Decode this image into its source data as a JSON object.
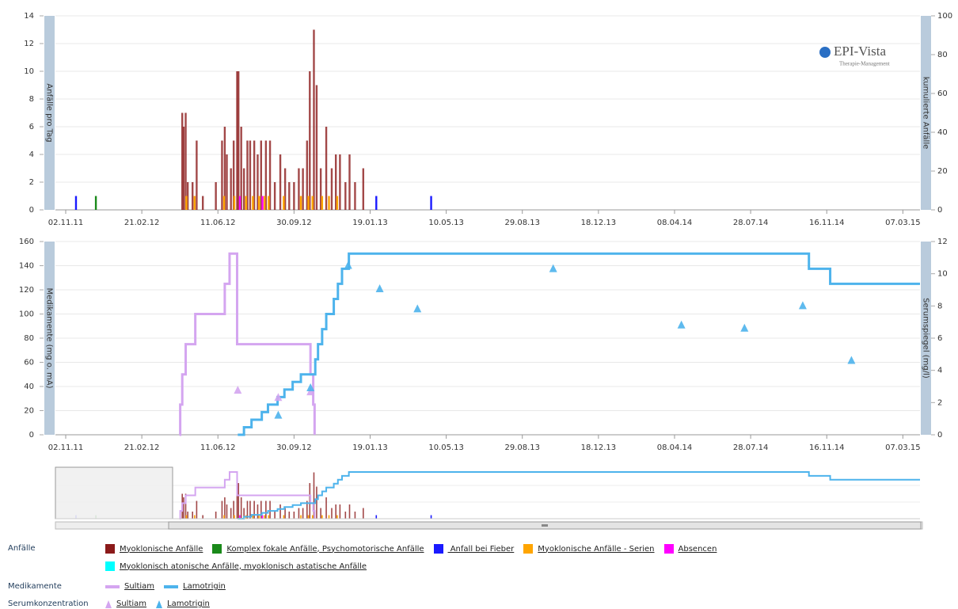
{
  "logo": {
    "title": "EPI-Vista",
    "subtitle": "Therapie-Management"
  },
  "chart_data": [
    {
      "type": "bar",
      "legend_title": "Anfälle",
      "y_label": "Anfälle pro Tag",
      "y2_label": "kumulierte Anfälle",
      "xlim": [
        "2011-10-18",
        "2015-04-01"
      ],
      "xticks": [
        {
          "value": "2011-11-02",
          "label": "02.11.11"
        },
        {
          "value": "2012-02-21",
          "label": "21.02.12"
        },
        {
          "value": "2012-06-11",
          "label": "11.06.12"
        },
        {
          "value": "2012-09-30",
          "label": "30.09.12"
        },
        {
          "value": "2013-01-19",
          "label": "19.01.13"
        },
        {
          "value": "2013-05-10",
          "label": "10.05.13"
        },
        {
          "value": "2013-08-29",
          "label": "29.08.13"
        },
        {
          "value": "2013-12-18",
          "label": "18.12.13"
        },
        {
          "value": "2014-04-08",
          "label": "08.04.14"
        },
        {
          "value": "2014-07-28",
          "label": "28.07.14"
        },
        {
          "value": "2014-11-16",
          "label": "16.11.14"
        },
        {
          "value": "2015-03-07",
          "label": "07.03.15"
        }
      ],
      "ylim": [
        0,
        14
      ],
      "yticks": [
        0,
        2,
        4,
        6,
        8,
        10,
        12,
        14
      ],
      "y2lim": [
        0,
        100
      ],
      "y2ticks": [
        0,
        20,
        40,
        60,
        80,
        100
      ],
      "grid": true,
      "series": [
        {
          "name": "Myoklonische Anfälle",
          "color": "#8b1a1a",
          "x": [
            "2012-04-20",
            "2012-04-22",
            "2012-04-25",
            "2012-04-28",
            "2012-05-05",
            "2012-05-11",
            "2012-05-20",
            "2012-06-08",
            "2012-06-17",
            "2012-06-21",
            "2012-06-24",
            "2012-06-30",
            "2012-07-04",
            "2012-07-09",
            "2012-07-11",
            "2012-07-15",
            "2012-07-19",
            "2012-07-24",
            "2012-07-28",
            "2012-08-03",
            "2012-08-08",
            "2012-08-13",
            "2012-08-20",
            "2012-08-26",
            "2012-09-02",
            "2012-09-10",
            "2012-09-17",
            "2012-09-23",
            "2012-09-30",
            "2012-10-07",
            "2012-10-13",
            "2012-10-19",
            "2012-10-23",
            "2012-10-29",
            "2012-11-02",
            "2012-11-08",
            "2012-11-16",
            "2012-11-24",
            "2012-11-30",
            "2012-12-06",
            "2012-12-14",
            "2012-12-20",
            "2012-12-28",
            "2013-01-09"
          ],
          "values": [
            7,
            6,
            7,
            2,
            2,
            5,
            1,
            2,
            5,
            6,
            4,
            3,
            5,
            10,
            10,
            6,
            3,
            5,
            5,
            5,
            4,
            5,
            5,
            5,
            2,
            4,
            3,
            2,
            2,
            3,
            3,
            5,
            10,
            13,
            9,
            3,
            6,
            3,
            4,
            4,
            2,
            4,
            2,
            3
          ]
        },
        {
          "name": "Komplex fokale Anfälle, Psychomotorische Anfälle",
          "color": "#1a8a1a",
          "x": [
            "2011-12-16"
          ],
          "values": [
            1
          ]
        },
        {
          "name": " Anfall bei Fieber",
          "color": "#1a1aff",
          "x": [
            "2011-11-17",
            "2013-01-28",
            "2013-04-18"
          ],
          "values": [
            1,
            1,
            1
          ]
        },
        {
          "name": "Myoklonische Anfälle - Serien",
          "color": "#ffa500",
          "x": [
            "2012-04-26",
            "2012-05-08",
            "2012-06-20",
            "2012-07-05",
            "2012-07-22",
            "2012-08-01",
            "2012-08-10",
            "2012-08-18",
            "2012-08-24",
            "2012-09-15",
            "2012-10-10",
            "2012-10-21",
            "2012-10-27",
            "2012-11-10",
            "2012-11-20",
            "2012-12-02"
          ],
          "values": [
            1,
            1,
            1,
            1,
            1,
            1,
            1,
            1,
            1,
            1,
            1,
            1,
            1,
            1,
            1,
            1
          ]
        },
        {
          "name": "Absencen",
          "color": "#ff00ff",
          "x": [
            "2012-07-13",
            "2012-08-15"
          ],
          "values": [
            1,
            1
          ]
        },
        {
          "name": "Myoklonisch atonische Anfälle, myoklonisch astatische Anfälle",
          "color": "#00ffff",
          "x": [],
          "values": []
        }
      ]
    },
    {
      "type": "line",
      "step": true,
      "legend_title": "Medikamente",
      "y_label": "Medikamente (mg o. mA)",
      "y2_label": "Serumspiegel (mg/l)",
      "xlim": [
        "2011-10-18",
        "2015-04-01"
      ],
      "xticks": [
        {
          "value": "2011-11-02",
          "label": "02.11.11"
        },
        {
          "value": "2012-02-21",
          "label": "21.02.12"
        },
        {
          "value": "2012-06-11",
          "label": "11.06.12"
        },
        {
          "value": "2012-09-30",
          "label": "30.09.12"
        },
        {
          "value": "2013-01-19",
          "label": "19.01.13"
        },
        {
          "value": "2013-05-10",
          "label": "10.05.13"
        },
        {
          "value": "2013-08-29",
          "label": "29.08.13"
        },
        {
          "value": "2013-12-18",
          "label": "18.12.13"
        },
        {
          "value": "2014-04-08",
          "label": "08.04.14"
        },
        {
          "value": "2014-07-28",
          "label": "28.07.14"
        },
        {
          "value": "2014-11-16",
          "label": "16.11.14"
        },
        {
          "value": "2015-03-07",
          "label": "07.03.15"
        }
      ],
      "ylim": [
        0,
        160
      ],
      "yticks": [
        0,
        20,
        40,
        60,
        80,
        100,
        120,
        140,
        160
      ],
      "y2lim": [
        0,
        12
      ],
      "y2ticks": [
        0,
        2,
        4,
        6,
        8,
        10,
        12
      ],
      "grid": true,
      "series": [
        {
          "name": "Sultiam",
          "color": "#d4a5f0",
          "x": [
            "2012-04-16",
            "2012-04-17",
            "2012-04-20",
            "2012-04-25",
            "2012-05-09",
            "2012-06-21",
            "2012-06-28",
            "2012-07-09",
            "2012-10-24",
            "2012-10-28",
            "2012-10-30"
          ],
          "values": [
            0,
            25,
            50,
            75,
            100,
            125,
            150,
            75,
            50,
            25,
            0
          ]
        },
        {
          "name": "Lamotrigin",
          "color": "#4db3ec",
          "x": [
            "2012-07-10",
            "2012-07-19",
            "2012-07-30",
            "2012-08-14",
            "2012-08-23",
            "2012-09-06",
            "2012-09-16",
            "2012-09-28",
            "2012-10-10",
            "2012-10-31",
            "2012-11-04",
            "2012-11-10",
            "2012-11-16",
            "2012-11-27",
            "2012-12-03",
            "2012-12-09",
            "2012-12-19",
            "2014-10-21",
            "2014-11-21"
          ],
          "values": [
            0,
            6.25,
            12.5,
            18.75,
            25,
            31.25,
            37.5,
            43.75,
            50,
            62.5,
            75,
            87.5,
            100,
            112.5,
            125,
            137.5,
            150,
            137.5,
            125
          ]
        }
      ],
      "markers": {
        "type": "scatter",
        "legend_title": "Serumkonzentration",
        "axis": "y2",
        "series": [
          {
            "name": "Sultiam",
            "color": "#d4a5f0",
            "x": [
              "2012-07-10",
              "2012-09-07",
              "2012-10-24"
            ],
            "values": [
              2.75,
              2.3,
              2.65
            ]
          },
          {
            "name": "Lamotrigin",
            "color": "#4db3ec",
            "x": [
              "2012-09-07",
              "2012-10-24",
              "2012-12-18",
              "2013-02-02",
              "2013-03-29",
              "2013-10-13",
              "2014-04-18",
              "2014-07-19",
              "2014-10-12",
              "2014-12-22"
            ],
            "values": [
              1.2,
              2.9,
              10.5,
              9.05,
              7.8,
              10.3,
              6.8,
              6.6,
              8.0,
              4.6
            ]
          }
        ]
      }
    }
  ]
}
